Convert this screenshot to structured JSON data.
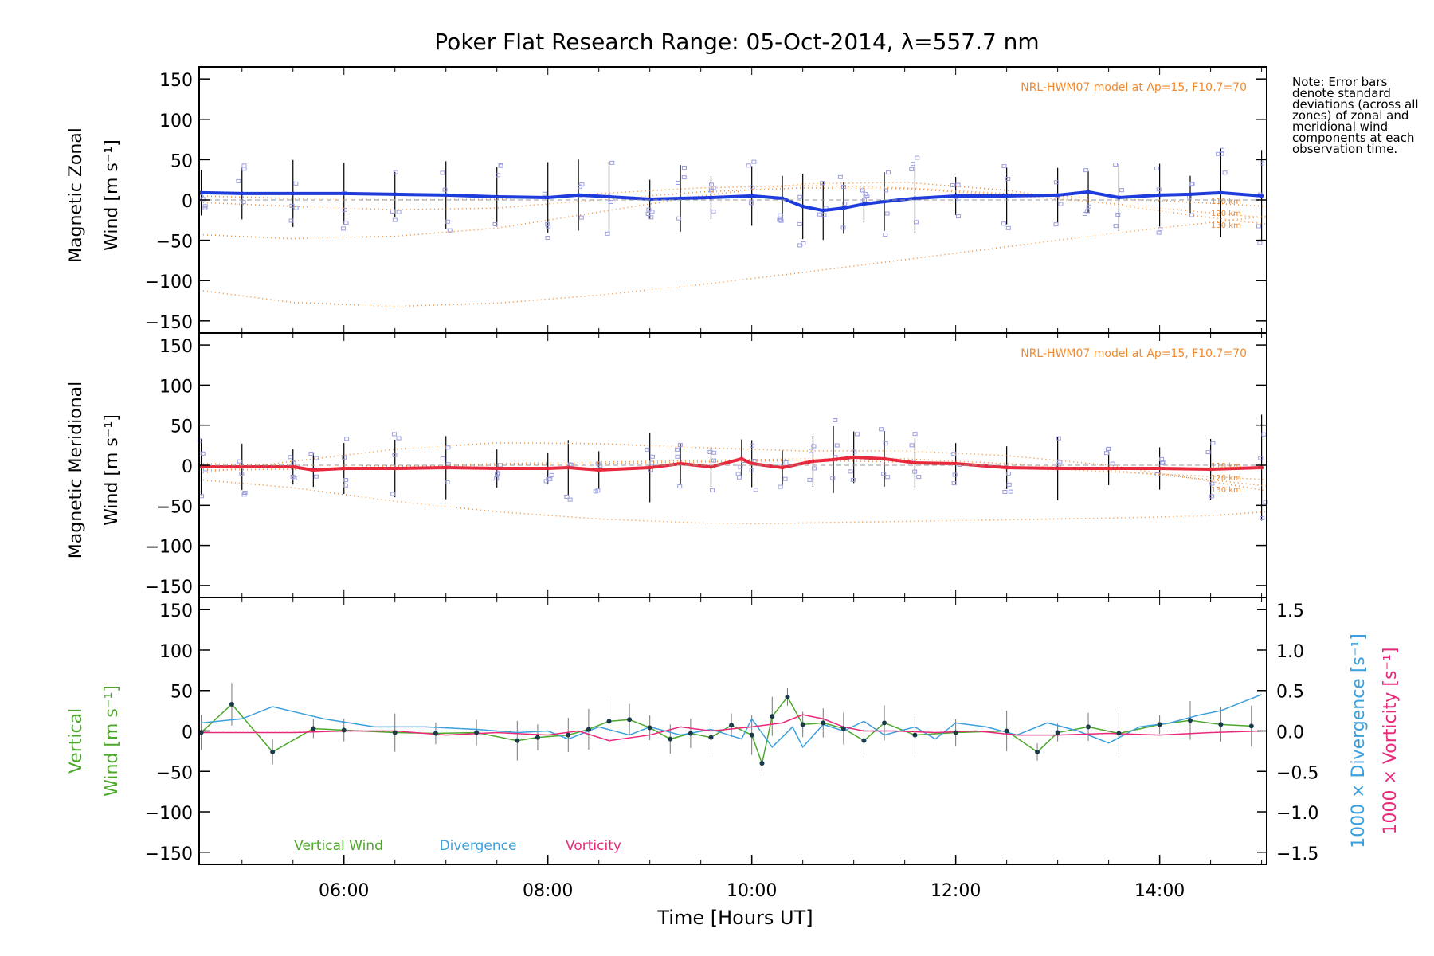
{
  "chart_data": [
    {
      "type": "line",
      "panel": "zonal",
      "title": "Poker Flat Research Range: 05-Oct-2014, λ=557.7 nm",
      "ylabel_line1": "Magnetic Zonal",
      "ylabel_line2": "Wind [m s⁻¹]",
      "model_label": "NRL-HWM07 model at Ap=15, F10.7=70",
      "altitude_labels": [
        "110 km",
        "120 km",
        "130 km"
      ],
      "ylim": [
        -165,
        165
      ],
      "xlim": [
        4.58,
        15.05
      ],
      "yticks": [
        150,
        100,
        50,
        0,
        -50,
        -100,
        -150
      ],
      "ytick_labels": [
        "150",
        "100",
        "50",
        "0",
        "−50",
        "−100",
        "−150"
      ],
      "grid": false,
      "series": [
        {
          "color": "#1e3cdc",
          "x": [
            4.6,
            5.0,
            5.5,
            6.0,
            6.5,
            7.0,
            7.5,
            8.0,
            8.3,
            8.6,
            9.0,
            9.3,
            9.6,
            10.0,
            10.3,
            10.5,
            10.7,
            10.9,
            11.1,
            11.3,
            11.6,
            12.0,
            12.5,
            13.0,
            13.3,
            13.6,
            14.0,
            14.3,
            14.6,
            15.0
          ],
          "y": [
            9,
            8,
            8,
            8,
            7,
            6,
            4,
            3,
            6,
            4,
            1,
            2,
            3,
            5,
            2,
            -8,
            -13,
            -10,
            -5,
            -2,
            2,
            5,
            5,
            6,
            10,
            3,
            6,
            7,
            9,
            5
          ]
        },
        {
          "color": "#f08a30",
          "x": [
            4.58,
            5.5,
            6.5,
            7.5,
            8.5,
            9.5,
            10.5,
            11.5,
            12.5,
            13.5,
            14.5,
            15.05
          ],
          "y": [
            -112,
            -127,
            -132,
            -128,
            -118,
            -105,
            -90,
            -74,
            -58,
            -42,
            -28,
            -20
          ]
        },
        {
          "color": "#f08a30",
          "x": [
            4.58,
            5.5,
            6.5,
            7.5,
            8.5,
            9.5,
            10.5,
            11.5,
            12.5,
            13.5,
            14.5,
            15.05
          ],
          "y": [
            -43,
            -48,
            -45,
            -35,
            -15,
            5,
            20,
            22,
            12,
            -5,
            -22,
            -30
          ]
        },
        {
          "color": "#f08a30",
          "x": [
            4.58,
            5.5,
            6.5,
            7.5,
            8.5,
            9.5,
            10.5,
            11.5,
            12.5,
            13.5,
            14.5,
            15.05
          ],
          "y": [
            -3,
            -8,
            -12,
            -10,
            0,
            10,
            15,
            14,
            6,
            -4,
            -16,
            -22
          ]
        },
        {
          "color": "#f08a30",
          "x": [
            4.58,
            5.5,
            6.5,
            7.5,
            8.5,
            9.5,
            10.5,
            11.5,
            12.5,
            13.5,
            14.5,
            15.05
          ],
          "y": [
            5,
            2,
            0,
            1,
            8,
            15,
            18,
            15,
            8,
            2,
            -4,
            -8
          ]
        }
      ]
    },
    {
      "type": "line",
      "panel": "meridional",
      "ylabel_line1": "Magnetic Meridional",
      "ylabel_line2": "Wind [m s⁻¹]",
      "model_label": "NRL-HWM07 model at Ap=15, F10.7=70",
      "altitude_labels": [
        "110 km",
        "120 km",
        "130 km"
      ],
      "ylim": [
        -165,
        165
      ],
      "xlim": [
        4.58,
        15.05
      ],
      "yticks": [
        150,
        100,
        50,
        0,
        -50,
        -100,
        -150
      ],
      "ytick_labels": [
        "150",
        "100",
        "50",
        "0",
        "−50",
        "−100",
        "−150"
      ],
      "grid": false,
      "series": [
        {
          "color": "#e8283c",
          "x": [
            4.6,
            5.0,
            5.5,
            5.7,
            6.0,
            6.5,
            7.0,
            7.5,
            8.0,
            8.2,
            8.5,
            9.0,
            9.3,
            9.6,
            9.9,
            10.0,
            10.3,
            10.6,
            10.8,
            11.0,
            11.3,
            11.6,
            12.0,
            12.5,
            13.0,
            13.5,
            14.0,
            14.5,
            15.0
          ],
          "y": [
            -2,
            -2,
            -2,
            -6,
            -4,
            -4,
            -3,
            -4,
            -4,
            -3,
            -6,
            -3,
            2,
            -2,
            8,
            2,
            -3,
            5,
            7,
            10,
            8,
            3,
            2,
            -3,
            -4,
            -4,
            -4,
            -5,
            -3
          ]
        },
        {
          "color": "#f08a30",
          "x": [
            4.58,
            5.5,
            6.5,
            7.5,
            8.5,
            9.5,
            10.0,
            10.5,
            11.5,
            12.5,
            13.5,
            14.5,
            15.05
          ],
          "y": [
            -18,
            -28,
            -45,
            -58,
            -67,
            -72,
            -73,
            -72,
            -70,
            -68,
            -66,
            -63,
            -58
          ]
        },
        {
          "color": "#f08a30",
          "x": [
            4.58,
            5.5,
            6.5,
            7.5,
            8.5,
            9.5,
            10.5,
            11.5,
            12.5,
            13.5,
            14.5,
            15.05
          ],
          "y": [
            -10,
            5,
            20,
            28,
            27,
            22,
            18,
            18,
            12,
            0,
            -20,
            -32
          ]
        },
        {
          "color": "#f08a30",
          "x": [
            4.58,
            5.5,
            6.5,
            7.5,
            8.5,
            9.5,
            10.5,
            11.5,
            12.5,
            13.5,
            14.5,
            15.05
          ],
          "y": [
            -6,
            -5,
            -2,
            2,
            4,
            6,
            8,
            8,
            2,
            -6,
            -18,
            -26
          ]
        },
        {
          "color": "#f08a30",
          "x": [
            4.58,
            5.5,
            6.5,
            7.5,
            8.5,
            9.5,
            10.5,
            11.5,
            12.5,
            13.5,
            14.5,
            15.05
          ],
          "y": [
            2,
            0,
            -1,
            0,
            2,
            4,
            6,
            4,
            -2,
            -8,
            -14,
            -18
          ]
        }
      ]
    },
    {
      "type": "line",
      "panel": "vertical",
      "xlabel": "Time [Hours UT]",
      "ylabel_line1": "Vertical",
      "ylabel_line2": "Wind [m s⁻¹]",
      "right_label_divergence": "1000 × Divergence [s⁻¹]",
      "right_label_vorticity": "1000 × Vorticity [s⁻¹]",
      "ylim": [
        -165,
        165
      ],
      "y2lim": [
        -1.65,
        1.65
      ],
      "xlim": [
        4.58,
        15.05
      ],
      "xticks": [
        6,
        8,
        10,
        12,
        14
      ],
      "xtick_labels": [
        "06:00",
        "08:00",
        "10:00",
        "12:00",
        "14:00"
      ],
      "yticks": [
        150,
        100,
        50,
        0,
        -50,
        -100,
        -150
      ],
      "ytick_labels": [
        "150",
        "100",
        "50",
        "0",
        "−50",
        "−100",
        "−150"
      ],
      "y2ticks": [
        1.5,
        1.0,
        0.5,
        0.0,
        -0.5,
        -1.0,
        -1.5
      ],
      "y2tick_labels": [
        "1.5",
        "1.0",
        "0.5",
        "0.0",
        "−0.5",
        "−1.0",
        "−1.5"
      ],
      "legend": [
        "Vertical Wind",
        "Divergence",
        "Vorticity"
      ],
      "grid": false,
      "series": [
        {
          "name": "Vertical Wind",
          "color": "#4ca82a",
          "axis": "left",
          "x": [
            4.6,
            4.9,
            5.3,
            5.7,
            6.0,
            6.5,
            6.9,
            7.3,
            7.7,
            7.9,
            8.2,
            8.4,
            8.6,
            8.8,
            9.0,
            9.2,
            9.4,
            9.6,
            9.8,
            10.0,
            10.1,
            10.2,
            10.35,
            10.5,
            10.7,
            10.9,
            11.1,
            11.3,
            11.6,
            12.0,
            12.5,
            12.8,
            13.0,
            13.3,
            13.6,
            14.0,
            14.3,
            14.6,
            14.9
          ],
          "y": [
            -2,
            33,
            -26,
            3,
            1,
            -2,
            -3,
            -2,
            -12,
            -8,
            -5,
            2,
            12,
            14,
            4,
            -10,
            -3,
            -8,
            7,
            -5,
            -40,
            18,
            42,
            8,
            10,
            3,
            -12,
            10,
            -5,
            -2,
            0,
            -26,
            -2,
            5,
            -3,
            8,
            13,
            8,
            6
          ]
        },
        {
          "name": "Divergence",
          "color": "#3ca0dc",
          "axis": "right",
          "x": [
            4.6,
            5.0,
            5.3,
            5.8,
            6.3,
            6.8,
            7.3,
            7.7,
            8.0,
            8.2,
            8.5,
            8.8,
            9.0,
            9.3,
            9.6,
            9.9,
            10.0,
            10.2,
            10.4,
            10.5,
            10.7,
            10.9,
            11.1,
            11.3,
            11.6,
            11.8,
            12.0,
            12.3,
            12.6,
            12.9,
            13.2,
            13.5,
            13.8,
            14.1,
            14.4,
            14.6,
            14.8,
            15.0
          ],
          "y": [
            0.1,
            0.15,
            0.3,
            0.15,
            0.05,
            0.05,
            0.02,
            -0.02,
            0.0,
            -0.1,
            0.05,
            -0.05,
            0.05,
            -0.05,
            0.02,
            -0.1,
            0.15,
            -0.2,
            0.05,
            -0.2,
            0.08,
            0.0,
            0.12,
            -0.05,
            0.05,
            -0.1,
            0.1,
            0.05,
            -0.05,
            0.1,
            0.0,
            -0.15,
            0.05,
            0.1,
            0.2,
            0.25,
            0.35,
            0.45
          ]
        },
        {
          "name": "Vorticity",
          "color": "#e8287a",
          "axis": "right",
          "x": [
            4.6,
            5.0,
            5.5,
            6.0,
            6.5,
            7.0,
            7.5,
            8.0,
            8.3,
            8.6,
            9.0,
            9.3,
            9.6,
            10.0,
            10.3,
            10.5,
            10.7,
            10.9,
            11.1,
            11.4,
            11.8,
            12.2,
            12.6,
            13.0,
            13.5,
            14.0,
            14.5,
            15.0
          ],
          "y": [
            -0.02,
            -0.02,
            -0.02,
            0.0,
            0.0,
            -0.05,
            -0.02,
            -0.05,
            0.0,
            -0.12,
            -0.05,
            0.05,
            0.0,
            0.05,
            0.1,
            0.2,
            0.15,
            0.05,
            0.0,
            0.0,
            -0.02,
            0.0,
            -0.05,
            -0.05,
            -0.03,
            -0.05,
            -0.02,
            0.0
          ]
        }
      ]
    }
  ],
  "note": "Note: Error bars denote standard deviations (across all zones) of zonal and meridional wind components at each observation time.",
  "colors": {
    "zonal_mean": "#1e3cdc",
    "zonal_mean_light": "#5aa0e6",
    "meridional_mean": "#e8283c",
    "model": "#f08a30",
    "zone_markers": "#9b9ee0",
    "vertical_wind": "#4ca82a",
    "divergence": "#3ca0dc",
    "vorticity": "#e8287a",
    "axes": "#000000"
  }
}
